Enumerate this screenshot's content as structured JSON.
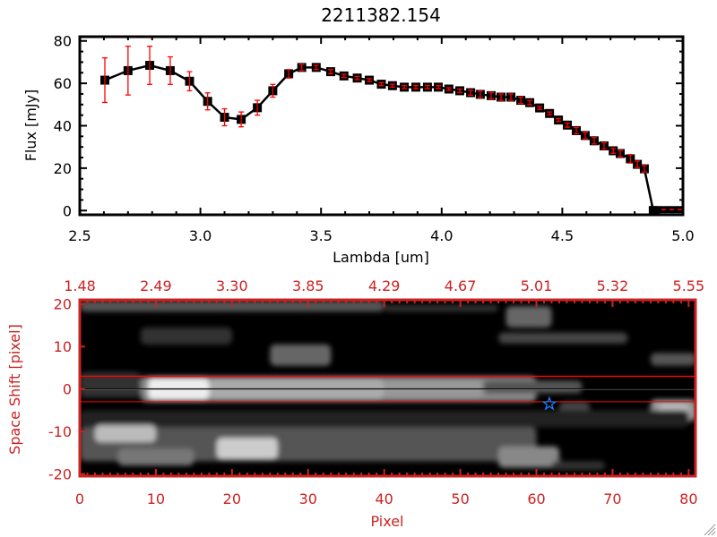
{
  "colors": {
    "axis_top": "#000000",
    "axis_bottom": "#cc2222",
    "errorbar": "#ff0000",
    "marker": "#000000",
    "star": "#1e7fff"
  },
  "chart_data": [
    {
      "type": "line",
      "title": "2211382.154",
      "xlabel": "Lambda [um]",
      "ylabel": "Flux [mJy]",
      "xlim": [
        2.5,
        5.0
      ],
      "ylim": [
        -2,
        82
      ],
      "xticks": [
        "2.5",
        "3.0",
        "3.5",
        "4.0",
        "4.5",
        "5.0"
      ],
      "yticks": [
        "0",
        "20",
        "40",
        "60",
        "80"
      ],
      "grid": false,
      "series": [
        {
          "name": "flux",
          "x": [
            2.604,
            2.7,
            2.79,
            2.875,
            2.955,
            3.03,
            3.1,
            3.169,
            3.236,
            3.3,
            3.366,
            3.42,
            3.48,
            3.54,
            3.595,
            3.65,
            3.7,
            3.75,
            3.796,
            3.845,
            3.893,
            3.941,
            3.986,
            4.03,
            4.075,
            4.12,
            4.16,
            4.205,
            4.246,
            4.287,
            4.328,
            4.365,
            4.406,
            4.447,
            4.484,
            4.521,
            4.558,
            4.595,
            4.632,
            4.673,
            4.711,
            4.74,
            4.782,
            4.811,
            4.84,
            4.877
          ],
          "y": [
            61.5,
            66,
            68.5,
            66,
            61,
            51.5,
            44,
            43,
            48.5,
            56.5,
            64.5,
            67.5,
            67.5,
            65.5,
            63.5,
            62.5,
            61.5,
            59.6,
            58.9,
            58.2,
            58.2,
            58.2,
            58.2,
            57.3,
            56.5,
            55.6,
            54.8,
            54.2,
            53.5,
            53.5,
            52,
            50.9,
            48.4,
            45.8,
            42.7,
            40.3,
            37.7,
            35.4,
            32.9,
            30.5,
            28.2,
            26.9,
            24.4,
            21.8,
            19.7,
            0
          ],
          "yerr": [
            10.5,
            11.5,
            9,
            6.5,
            4.5,
            4,
            4,
            3.5,
            3.5,
            3,
            2,
            1.5,
            1,
            1,
            0.8,
            0.8,
            0.7,
            0.7,
            0.7,
            0.7,
            0.8,
            0.8,
            0.7,
            0.6,
            0.8,
            1.2,
            1.5,
            1.5,
            1.5,
            1.5,
            1.5,
            1,
            0.7,
            0.7,
            0.7,
            1,
            1.5,
            1.5,
            1.5,
            1.5,
            1.2,
            1.5,
            2,
            1.5,
            1.5,
            0
          ]
        }
      ]
    },
    {
      "type": "heatmap",
      "xlabel": "Pixel",
      "ylabel": "Space Shift [pixel]",
      "xlim": [
        0,
        80.9
      ],
      "ylim": [
        -20.5,
        21
      ],
      "xticks": [
        "0",
        "10",
        "20",
        "30",
        "40",
        "50",
        "60",
        "70",
        "80"
      ],
      "top_xticks": [
        "1.48",
        "2.49",
        "3.30",
        "3.85",
        "4.29",
        "4.67",
        "5.01",
        "5.32",
        "5.55"
      ],
      "yticks": [
        "-20",
        "-10",
        "0",
        "10",
        "20"
      ],
      "extraction_window": [
        -3,
        3
      ],
      "trace_center": 0,
      "marker": {
        "symbol": "star",
        "x": 61.7,
        "y": -3.5
      }
    }
  ]
}
